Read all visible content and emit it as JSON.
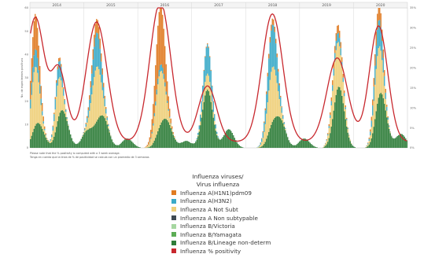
{
  "chart_data": {
    "type": "bar",
    "years": [
      "2014",
      "2015",
      "2016",
      "2017",
      "2018",
      "2019",
      "2020"
    ],
    "y_left_ticks": [
      "0",
      "10",
      "20",
      "30",
      "40",
      "50",
      "60"
    ],
    "y_left_label": "No. de especímenes positivos",
    "y_right_ticks": [
      "0%",
      "5%",
      "10%",
      "15%",
      "20%",
      "25%",
      "30%",
      "35%"
    ],
    "notes": [
      "Please note that the % positivity is computed with a 3 week average.",
      "Tenga en cuenta que la línea de % de positividad se calcula con un promedio de 3 semanas"
    ],
    "legend": {
      "title_line1": "Influenza viruses/",
      "title_line2": "Virus influenza",
      "items": [
        {
          "label": "Influenza A(H1N1)pdm09",
          "color": "#e07b22"
        },
        {
          "label": "Influenza A(H3N2)",
          "color": "#3aaac8"
        },
        {
          "label": "Influenza A Not Subt",
          "color": "#efd07a"
        },
        {
          "label": "Influenza A Non subtypable",
          "color": "#3f4a52"
        },
        {
          "label": "Influenza B/Victoria",
          "color": "#a6d7a0"
        },
        {
          "label": "Influenza B/Yamagata",
          "color": "#5cad55"
        },
        {
          "label": "Influenza B/Lineage non-determ",
          "color": "#2f7d3a"
        },
        {
          "label": "Influenza % positivity",
          "color": "#c8282e"
        }
      ]
    },
    "series_order": [
      "Influenza A(H1N1)pdm09",
      "Influenza A(H3N2)",
      "Influenza A Not Subt",
      "Influenza A Non subtypable",
      "Influenza B/Victoria",
      "Influenza B/Yamagata",
      "Influenza B/Lineage non-determ"
    ],
    "ylim_left": [
      0,
      60
    ],
    "ylim_right": [
      0,
      0.35
    ],
    "peaks": [
      {
        "week": 4,
        "h1": 0.3,
        "h3": 0.15,
        "ans": 0.5,
        "b": 0.08,
        "peak_pct": 0.31,
        "width": 3.5
      },
      {
        "week": 24,
        "h1": 0.05,
        "h3": 0.25,
        "ans": 0.55,
        "b": 0.14,
        "peak_pct": 0.18,
        "width": 3.0
      },
      {
        "week": 56,
        "h1": 0.12,
        "h3": 0.3,
        "ans": 0.48,
        "b": 0.1,
        "peak_pct": 0.3,
        "width": 4.0
      },
      {
        "week": 110,
        "h1": 0.45,
        "h3": 0.05,
        "ans": 0.4,
        "b": 0.1,
        "peak_pct": 0.35,
        "width": 4.0
      },
      {
        "week": 150,
        "h1": 0.02,
        "h3": 0.55,
        "ans": 0.3,
        "b": 0.13,
        "peak_pct": 0.14,
        "width": 3.5
      },
      {
        "week": 205,
        "h1": 0.05,
        "h3": 0.35,
        "ans": 0.45,
        "b": 0.15,
        "peak_pct": 0.32,
        "width": 4.0
      },
      {
        "week": 260,
        "h1": 0.1,
        "h3": 0.12,
        "ans": 0.58,
        "b": 0.2,
        "peak_pct": 0.21,
        "width": 4.0
      },
      {
        "week": 295,
        "h1": 0.15,
        "h3": 0.25,
        "ans": 0.45,
        "b": 0.15,
        "peak_pct": 0.29,
        "width": 3.5
      }
    ],
    "weeks_total": 320,
    "b_component": [
      {
        "week": 8,
        "value": 8
      },
      {
        "week": 28,
        "value": 14
      },
      {
        "week": 48,
        "value": 7
      },
      {
        "week": 62,
        "value": 12
      },
      {
        "week": 82,
        "value": 4
      },
      {
        "week": 116,
        "value": 10
      },
      {
        "week": 132,
        "value": 3
      },
      {
        "week": 150,
        "value": 22
      },
      {
        "week": 168,
        "value": 8
      },
      {
        "week": 212,
        "value": 11
      },
      {
        "week": 232,
        "value": 4
      },
      {
        "week": 262,
        "value": 20
      },
      {
        "week": 298,
        "value": 18
      },
      {
        "week": 314,
        "value": 6
      }
    ]
  }
}
